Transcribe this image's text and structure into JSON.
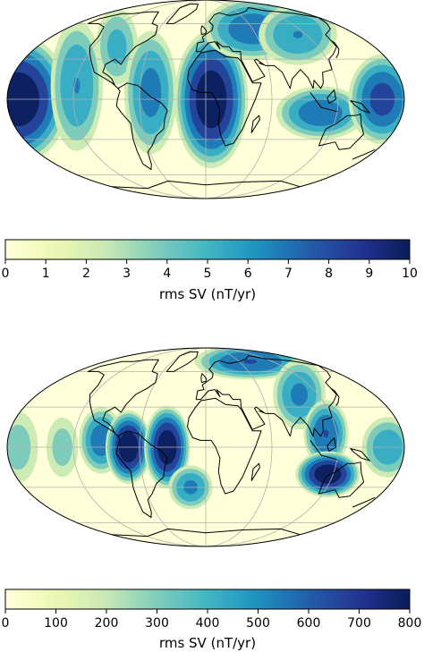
{
  "colormap": [
    "#ffffd9",
    "#edf8b1",
    "#c7e9b4",
    "#7fcdbb",
    "#41b6c4",
    "#1d91c0",
    "#225ea8",
    "#253494",
    "#081d58"
  ],
  "panels": [
    {
      "id": "top",
      "colorbar": {
        "label": "rms SV (nT/yr)",
        "min": 0,
        "max": 10,
        "ticks": [
          "0",
          "1",
          "2",
          "3",
          "4",
          "5",
          "6",
          "7",
          "8",
          "9",
          "10"
        ]
      },
      "field_blobs": [
        {
          "lon": -170,
          "lat": 0,
          "value": 10,
          "spread_lon": 22,
          "spread_lat": 28
        },
        {
          "lon": -118,
          "lat": 10,
          "value": 6,
          "spread_lon": 12,
          "spread_lat": 30
        },
        {
          "lon": -95,
          "lat": 40,
          "value": 5,
          "spread_lon": 10,
          "spread_lat": 18
        },
        {
          "lon": -50,
          "lat": 5,
          "value": 6.5,
          "spread_lon": 12,
          "spread_lat": 28
        },
        {
          "lon": 5,
          "lat": 0,
          "value": 10,
          "spread_lon": 16,
          "spread_lat": 30
        },
        {
          "lon": 60,
          "lat": 55,
          "value": 7,
          "spread_lon": 22,
          "spread_lat": 14
        },
        {
          "lon": 110,
          "lat": 50,
          "value": 6,
          "spread_lon": 18,
          "spread_lat": 14
        },
        {
          "lon": 105,
          "lat": -10,
          "value": 7,
          "spread_lon": 20,
          "spread_lat": 12
        },
        {
          "lon": 160,
          "lat": 0,
          "value": 8,
          "spread_lon": 15,
          "spread_lat": 20
        }
      ]
    },
    {
      "id": "bottom",
      "colorbar": {
        "label": "rms SV (nT/yr)",
        "min": 0,
        "max": 800,
        "ticks": [
          "0",
          "100",
          "200",
          "300",
          "400",
          "500",
          "600",
          "700",
          "800"
        ]
      },
      "field_blobs": [
        {
          "lon": -170,
          "lat": 0,
          "value": 300,
          "spread_lon": 10,
          "spread_lat": 18
        },
        {
          "lon": -130,
          "lat": 0,
          "value": 300,
          "spread_lon": 8,
          "spread_lat": 15
        },
        {
          "lon": -95,
          "lat": 5,
          "value": 550,
          "spread_lon": 10,
          "spread_lat": 15
        },
        {
          "lon": -70,
          "lat": 0,
          "value": 800,
          "spread_lon": 10,
          "spread_lat": 16
        },
        {
          "lon": -35,
          "lat": 0,
          "value": 800,
          "spread_lon": 10,
          "spread_lat": 18
        },
        {
          "lon": -15,
          "lat": -30,
          "value": 500,
          "spread_lon": 10,
          "spread_lat": 10
        },
        {
          "lon": 80,
          "lat": 70,
          "value": 600,
          "spread_lon": 25,
          "spread_lat": 8
        },
        {
          "lon": 100,
          "lat": 40,
          "value": 500,
          "spread_lon": 12,
          "spread_lat": 16
        },
        {
          "lon": 110,
          "lat": 10,
          "value": 600,
          "spread_lon": 10,
          "spread_lat": 15
        },
        {
          "lon": 115,
          "lat": -20,
          "value": 800,
          "spread_lon": 14,
          "spread_lat": 10
        },
        {
          "lon": 165,
          "lat": 0,
          "value": 450,
          "spread_lon": 12,
          "spread_lat": 14
        }
      ]
    }
  ]
}
